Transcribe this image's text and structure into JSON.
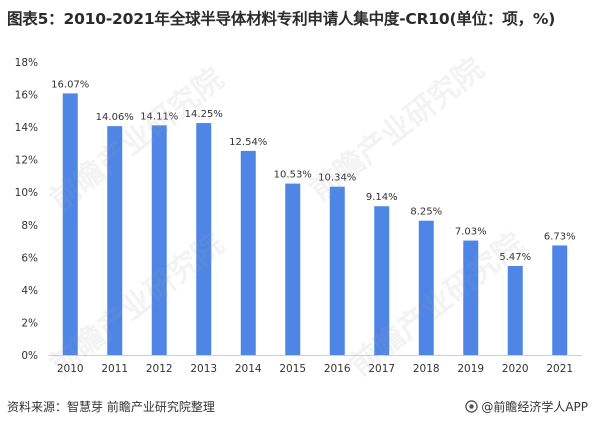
{
  "title": "图表5：2010-2021年全球半导体材料专利申请人集中度-CR10(单位：项，%)",
  "chart_data": {
    "type": "bar",
    "categories": [
      "2010",
      "2011",
      "2012",
      "2013",
      "2014",
      "2015",
      "2016",
      "2017",
      "2018",
      "2019",
      "2020",
      "2021"
    ],
    "values": [
      16.07,
      14.06,
      14.11,
      14.25,
      12.54,
      10.53,
      10.34,
      9.14,
      8.25,
      7.03,
      5.47,
      6.73
    ],
    "data_labels": [
      "16.07%",
      "14.06%",
      "14.11%",
      "14.25%",
      "12.54%",
      "10.53%",
      "10.34%",
      "9.14%",
      "8.25%",
      "7.03%",
      "5.47%",
      "6.73%"
    ],
    "y_ticks": [
      "0%",
      "2%",
      "4%",
      "6%",
      "8%",
      "10%",
      "12%",
      "14%",
      "16%",
      "18%"
    ],
    "ylim": [
      0,
      18
    ],
    "grid": false,
    "bar_color": "#4f86e6"
  },
  "footer": {
    "source": "资料来源：智慧芽 前瞻产业研究院整理",
    "brand": "@前瞻经济学人APP"
  },
  "watermark": {
    "text": "前瞻产业研究院"
  }
}
